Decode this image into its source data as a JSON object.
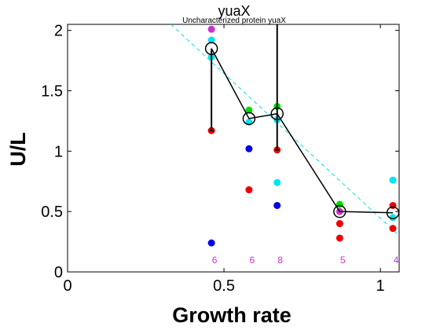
{
  "chart_data": {
    "type": "scatter",
    "title": "yuaX",
    "subtitle": "Uncharacterized protein yuaX",
    "xlabel": "Growth rate",
    "ylabel": "U/L",
    "xlim": [
      0,
      1.06
    ],
    "ylim": [
      0,
      2.05
    ],
    "x_ticks": [
      0,
      0.5,
      1
    ],
    "y_ticks": [
      0,
      0.5,
      1,
      1.5,
      2
    ],
    "grid": false,
    "trend_line": {
      "x": [
        0.33,
        1.06
      ],
      "y": [
        2.05,
        0.3
      ],
      "color": "#00e5ee"
    },
    "mean_series": {
      "x": [
        0.46,
        0.58,
        0.67,
        0.87,
        1.04
      ],
      "y": [
        1.85,
        1.27,
        1.31,
        0.5,
        0.49
      ],
      "err_low": [
        1.17,
        1.27,
        1.01,
        0.5,
        0.49
      ],
      "err_high": [
        1.85,
        1.27,
        2.05,
        0.5,
        0.49
      ]
    },
    "points": [
      {
        "x": 0.46,
        "y": 2.01,
        "color": "#cc33cc"
      },
      {
        "x": 0.46,
        "y": 1.92,
        "color": "#00e5ee"
      },
      {
        "x": 0.46,
        "y": 1.78,
        "color": "#00e5ee"
      },
      {
        "x": 0.46,
        "y": 1.17,
        "color": "#ee0000"
      },
      {
        "x": 0.46,
        "y": 0.24,
        "color": "#0000ee"
      },
      {
        "x": 0.58,
        "y": 1.34,
        "color": "#00dd00"
      },
      {
        "x": 0.58,
        "y": 1.24,
        "color": "#00e5ee"
      },
      {
        "x": 0.58,
        "y": 1.02,
        "color": "#0000ee"
      },
      {
        "x": 0.58,
        "y": 0.68,
        "color": "#ee0000"
      },
      {
        "x": 0.67,
        "y": 1.37,
        "color": "#00dd00"
      },
      {
        "x": 0.67,
        "y": 1.26,
        "color": "#00e5ee"
      },
      {
        "x": 0.67,
        "y": 1.01,
        "color": "#ee0000"
      },
      {
        "x": 0.67,
        "y": 0.74,
        "color": "#00e5ee"
      },
      {
        "x": 0.67,
        "y": 0.55,
        "color": "#0000ee"
      },
      {
        "x": 0.87,
        "y": 0.56,
        "color": "#00dd00"
      },
      {
        "x": 0.87,
        "y": 0.5,
        "color": "#cc33cc"
      },
      {
        "x": 0.87,
        "y": 0.4,
        "color": "#ee0000"
      },
      {
        "x": 0.87,
        "y": 0.28,
        "color": "#ee0000"
      },
      {
        "x": 1.04,
        "y": 0.76,
        "color": "#00e5ee"
      },
      {
        "x": 1.04,
        "y": 0.55,
        "color": "#ee0000"
      },
      {
        "x": 1.04,
        "y": 0.45,
        "color": "#00e5ee"
      },
      {
        "x": 1.04,
        "y": 0.36,
        "color": "#ee0000"
      }
    ],
    "count_labels": [
      {
        "x": 0.46,
        "text": "6"
      },
      {
        "x": 0.58,
        "text": "6"
      },
      {
        "x": 0.67,
        "text": "8"
      },
      {
        "x": 0.87,
        "text": "5"
      },
      {
        "x": 1.04,
        "text": "4"
      }
    ],
    "count_label_color": "#cc33cc"
  }
}
